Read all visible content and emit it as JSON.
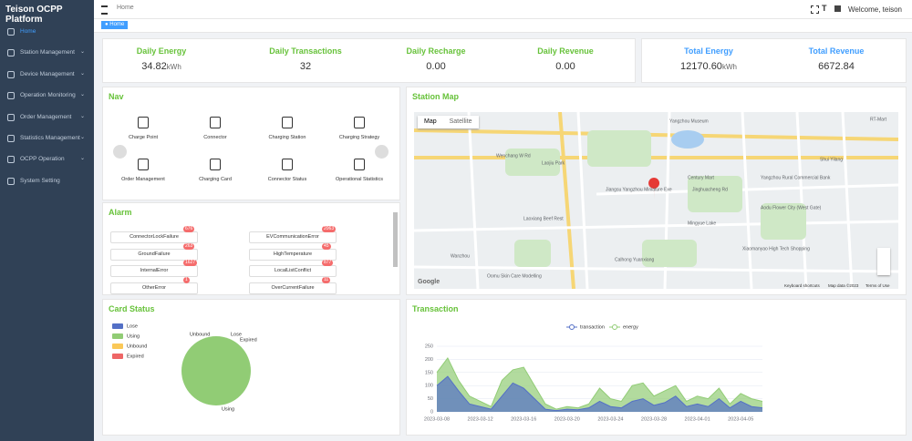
{
  "sidebar": {
    "title": "Teison OCPP Platform",
    "menu": [
      "Home",
      "Station Management",
      "Device Management",
      "Operation Monitoring",
      "Order Management",
      "Statistics Management",
      "OCPP Operation",
      "System Setting"
    ]
  },
  "header": {
    "breadcrumb": "Home",
    "user": "Welcome, teison"
  },
  "tabs": [
    "Home"
  ],
  "daily_stats": [
    {
      "label": "Daily Energy",
      "value": "34.82",
      "unit": "kWh"
    },
    {
      "label": "Daily Transactions",
      "value": "32"
    },
    {
      "label": "Daily Recharge",
      "value": "0.00"
    },
    {
      "label": "Daily Revenue",
      "value": "0.00"
    }
  ],
  "total_stats": [
    {
      "label": "Total Energy",
      "value": "12170.60",
      "unit": "kWh"
    },
    {
      "label": "Total Revenue",
      "value": "6672.84"
    }
  ],
  "nav": {
    "title": "Nav",
    "items": [
      "Charge Point",
      "Connector",
      "Charging Station",
      "Charging Strategy",
      "Order Management",
      "Charging Card",
      "Connector Status",
      "Operational Statistics"
    ]
  },
  "alarm": {
    "title": "Alarm",
    "items": [
      {
        "name": "ConnectorLockFailure",
        "count": 676
      },
      {
        "name": "EVCommunicationError",
        "count": 2063
      },
      {
        "name": "GroundFailure",
        "count": 263
      },
      {
        "name": "HighTemperature",
        "count": 45
      },
      {
        "name": "InternalError",
        "count": 1627
      },
      {
        "name": "LocalListConflict",
        "count": 877
      },
      {
        "name": "OtherError",
        "count": 1
      },
      {
        "name": "OverCurrentFailure",
        "count": 11
      }
    ]
  },
  "map": {
    "title": "Station Map",
    "buttons": [
      "Map",
      "Satellite"
    ],
    "labels": [
      "Yangzhou Museum",
      "Century Mart",
      "Jinghuacheng Rd",
      "Wenchang W Rd",
      "Jiangsu Yangzhou Miniature Exe",
      "Laoxiang Beef Rest",
      "Calhong Yuanxiang",
      "Laojiu Park",
      "Wanzhou",
      "Mingyue Lake",
      "Aodu Flower City (West Gate)",
      "Yangzhou Rural Commercial Bank",
      "Xiaomanyao High Tech Shopping",
      "Oomu Skin Care Modelling",
      "RT-Mart",
      "Shui Yilang"
    ],
    "footer": [
      "Keyboard shortcuts",
      "Map data ©2023",
      "Terms of Use"
    ],
    "logo": "Google"
  },
  "chart_data": [
    {
      "type": "pie",
      "title": "Card Status",
      "categories": [
        "Lose",
        "Using",
        "Unbound",
        "Expired"
      ],
      "values": [
        0,
        100,
        0,
        0
      ],
      "colors": [
        "#5470c6",
        "#91cc75",
        "#fac858",
        "#ee6666"
      ]
    },
    {
      "type": "area",
      "title": "Transaction",
      "categories": [
        "2023-03-08",
        null,
        null,
        null,
        "2023-03-12",
        null,
        null,
        null,
        "2023-03-16",
        null,
        null,
        null,
        "2023-03-20",
        null,
        null,
        null,
        "2023-03-24",
        null,
        null,
        null,
        "2023-03-28",
        null,
        null,
        null,
        "2023-04-01",
        null,
        null,
        null,
        "2023-04-05",
        null,
        null
      ],
      "series": [
        {
          "name": "transaction",
          "color": "#5470c6",
          "values": [
            100,
            135,
            80,
            30,
            20,
            10,
            60,
            110,
            90,
            50,
            10,
            5,
            10,
            8,
            15,
            40,
            20,
            15,
            40,
            50,
            25,
            35,
            60,
            20,
            30,
            20,
            50,
            15,
            40,
            20,
            15
          ]
        },
        {
          "name": "energy",
          "color": "#91cc75",
          "values": [
            150,
            205,
            120,
            60,
            40,
            20,
            120,
            160,
            170,
            100,
            30,
            10,
            20,
            15,
            30,
            90,
            50,
            40,
            100,
            110,
            60,
            80,
            100,
            40,
            60,
            50,
            90,
            30,
            70,
            50,
            40
          ]
        }
      ],
      "ylim": [
        0,
        250
      ],
      "yticks": [
        0,
        50,
        100,
        150,
        200,
        250
      ]
    }
  ]
}
